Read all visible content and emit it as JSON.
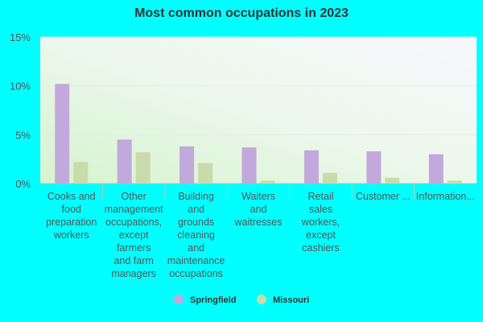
{
  "chart_data": {
    "type": "bar",
    "title": "Most common occupations in 2023",
    "xlabel": "",
    "ylabel": "",
    "ylim": [
      0,
      15
    ],
    "yticks": [
      {
        "value": 0,
        "label": "0%"
      },
      {
        "value": 5,
        "label": "5%"
      },
      {
        "value": 10,
        "label": "10%"
      },
      {
        "value": 15,
        "label": "15%"
      }
    ],
    "categories": [
      [
        "Cooks and",
        "food",
        "preparation",
        "workers"
      ],
      [
        "Other",
        "management",
        "occupations,",
        "except",
        "farmers",
        "and farm",
        "managers"
      ],
      [
        "Building",
        "and",
        "grounds",
        "cleaning",
        "and",
        "maintenance",
        "occupations"
      ],
      [
        "Waiters",
        "and",
        "waitresses"
      ],
      [
        "Retail",
        "sales",
        "workers,",
        "except",
        "cashiers"
      ],
      [
        "Customer ..."
      ],
      [
        "Information..."
      ]
    ],
    "series": [
      {
        "name": "Springfield",
        "color": "#c2a9dc",
        "values": [
          10.2,
          4.5,
          3.8,
          3.7,
          3.4,
          3.3,
          3.0
        ]
      },
      {
        "name": "Missouri",
        "color": "#c9dbab",
        "values": [
          2.2,
          3.2,
          2.1,
          0.3,
          1.1,
          0.6,
          0.3
        ]
      }
    ],
    "grid": true,
    "legend_position": "bottom"
  }
}
